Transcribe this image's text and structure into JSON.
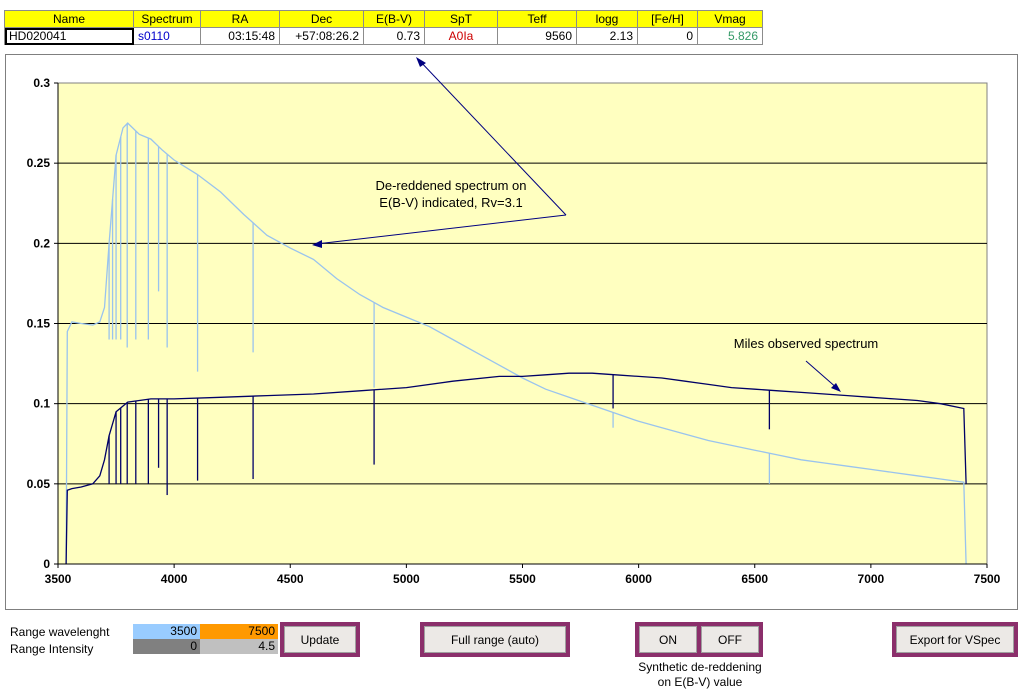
{
  "star_table": {
    "headers": [
      "Name",
      "Spectrum",
      "RA",
      "Dec",
      "E(B-V)",
      "SpT",
      "Teff",
      "logg",
      "[Fe/H]",
      "Vmag"
    ],
    "row": {
      "name": "HD020041",
      "spectrum": "s0110",
      "ra": "03:15:48",
      "dec": "+57:08:26.2",
      "ebv": "0.73",
      "spt": "A0Ia",
      "teff": "9560",
      "logg": "2.13",
      "feh": "0",
      "vmag": "5.826"
    },
    "colors": {
      "header_bg": "#ffff00",
      "spectrum": "#0000cc",
      "spt": "#cc0000",
      "vmag": "#339966"
    }
  },
  "chart_data": {
    "type": "line",
    "xlim": [
      3500,
      7500
    ],
    "ylim": [
      0,
      0.3
    ],
    "x_ticks": [
      "3500",
      "4000",
      "4500",
      "5000",
      "5500",
      "6000",
      "6500",
      "7000",
      "7500"
    ],
    "y_ticks": [
      "0",
      "0.05",
      "0.1",
      "0.15",
      "0.2",
      "0.25",
      "0.3"
    ],
    "grid": "horizontal",
    "plot_background": "#ffffc0",
    "series": [
      {
        "color": "#99c3ee",
        "points": [
          [
            3535,
            0
          ],
          [
            3540,
            0.145
          ],
          [
            3560,
            0.151
          ],
          [
            3600,
            0.15
          ],
          [
            3650,
            0.149
          ],
          [
            3680,
            0.151
          ],
          [
            3700,
            0.16
          ],
          [
            3720,
            0.2
          ],
          [
            3750,
            0.255
          ],
          [
            3780,
            0.272
          ],
          [
            3800,
            0.275
          ],
          [
            3850,
            0.268
          ],
          [
            3900,
            0.265
          ],
          [
            3950,
            0.258
          ],
          [
            4000,
            0.252
          ],
          [
            4100,
            0.243
          ],
          [
            4200,
            0.232
          ],
          [
            4300,
            0.218
          ],
          [
            4400,
            0.205
          ],
          [
            4500,
            0.197
          ],
          [
            4600,
            0.19
          ],
          [
            4700,
            0.178
          ],
          [
            4800,
            0.168
          ],
          [
            4900,
            0.16
          ],
          [
            5000,
            0.154
          ],
          [
            5100,
            0.148
          ],
          [
            5200,
            0.14
          ],
          [
            5300,
            0.132
          ],
          [
            5400,
            0.124
          ],
          [
            5500,
            0.116
          ],
          [
            5600,
            0.109
          ],
          [
            5700,
            0.104
          ],
          [
            5800,
            0.099
          ],
          [
            5900,
            0.094
          ],
          [
            6000,
            0.089
          ],
          [
            6100,
            0.085
          ],
          [
            6200,
            0.081
          ],
          [
            6300,
            0.077
          ],
          [
            6400,
            0.074
          ],
          [
            6500,
            0.071
          ],
          [
            6600,
            0.068
          ],
          [
            6700,
            0.065
          ],
          [
            6800,
            0.063
          ],
          [
            6900,
            0.061
          ],
          [
            7000,
            0.059
          ],
          [
            7100,
            0.057
          ],
          [
            7200,
            0.055
          ],
          [
            7300,
            0.053
          ],
          [
            7400,
            0.051
          ],
          [
            7410,
            0
          ]
        ],
        "absorption_lines": [
          [
            3720,
            0.14
          ],
          [
            3735,
            0.14
          ],
          [
            3750,
            0.14
          ],
          [
            3770,
            0.14
          ],
          [
            3798,
            0.135
          ],
          [
            3835,
            0.14
          ],
          [
            3889,
            0.14
          ],
          [
            3933,
            0.17
          ],
          [
            3970,
            0.135
          ],
          [
            4101,
            0.12
          ],
          [
            4340,
            0.132
          ],
          [
            4861,
            0.11
          ],
          [
            5890,
            0.085
          ],
          [
            6563,
            0.05
          ]
        ]
      },
      {
        "color": "#000066",
        "points": [
          [
            3535,
            0
          ],
          [
            3540,
            0.046
          ],
          [
            3560,
            0.047
          ],
          [
            3600,
            0.048
          ],
          [
            3650,
            0.05
          ],
          [
            3680,
            0.055
          ],
          [
            3700,
            0.065
          ],
          [
            3720,
            0.08
          ],
          [
            3750,
            0.095
          ],
          [
            3800,
            0.101
          ],
          [
            3900,
            0.103
          ],
          [
            4000,
            0.103
          ],
          [
            4200,
            0.104
          ],
          [
            4400,
            0.105
          ],
          [
            4600,
            0.106
          ],
          [
            4800,
            0.108
          ],
          [
            5000,
            0.11
          ],
          [
            5200,
            0.114
          ],
          [
            5400,
            0.117
          ],
          [
            5500,
            0.117
          ],
          [
            5600,
            0.118
          ],
          [
            5700,
            0.119
          ],
          [
            5800,
            0.119
          ],
          [
            5900,
            0.118
          ],
          [
            6000,
            0.117
          ],
          [
            6100,
            0.116
          ],
          [
            6200,
            0.114
          ],
          [
            6300,
            0.112
          ],
          [
            6400,
            0.11
          ],
          [
            6500,
            0.109
          ],
          [
            6600,
            0.108
          ],
          [
            6700,
            0.107
          ],
          [
            6800,
            0.106
          ],
          [
            6900,
            0.105
          ],
          [
            7000,
            0.104
          ],
          [
            7100,
            0.103
          ],
          [
            7200,
            0.102
          ],
          [
            7300,
            0.1
          ],
          [
            7400,
            0.097
          ],
          [
            7410,
            0.05
          ]
        ],
        "absorption_lines": [
          [
            3720,
            0.05
          ],
          [
            3750,
            0.05
          ],
          [
            3770,
            0.05
          ],
          [
            3798,
            0.05
          ],
          [
            3835,
            0.05
          ],
          [
            3889,
            0.05
          ],
          [
            3933,
            0.06
          ],
          [
            3970,
            0.043
          ],
          [
            4101,
            0.052
          ],
          [
            4340,
            0.053
          ],
          [
            4861,
            0.062
          ],
          [
            5890,
            0.097
          ],
          [
            6563,
            0.084
          ]
        ]
      }
    ],
    "annotations": [
      {
        "text_lines": [
          "De-reddened spectrum on",
          "E(B-V) indicated, Rv=3.1"
        ]
      },
      {
        "text_lines": [
          "Miles observed spectrum"
        ]
      }
    ]
  },
  "controls": {
    "range_wavelength_label": "Range wavelenght",
    "range_intensity_label": "Range Intensity",
    "wl_min": "3500",
    "wl_max": "7500",
    "int_min": "0",
    "int_max": "4.5",
    "update_label": "Update",
    "full_range_label": "Full range  (auto)",
    "on_label": "ON",
    "off_label": "OFF",
    "synthetic_note_line1": "Synthetic de-reddening",
    "synthetic_note_line2": "on E(B-V) value",
    "export_label": "Export for VSpec",
    "colors": {
      "wl_min_bg": "#99ccff",
      "wl_max_bg": "#ff9900",
      "int_min_bg": "#808080",
      "int_max_bg": "#c0c0c0",
      "button_border": "#8b2f6b"
    }
  }
}
